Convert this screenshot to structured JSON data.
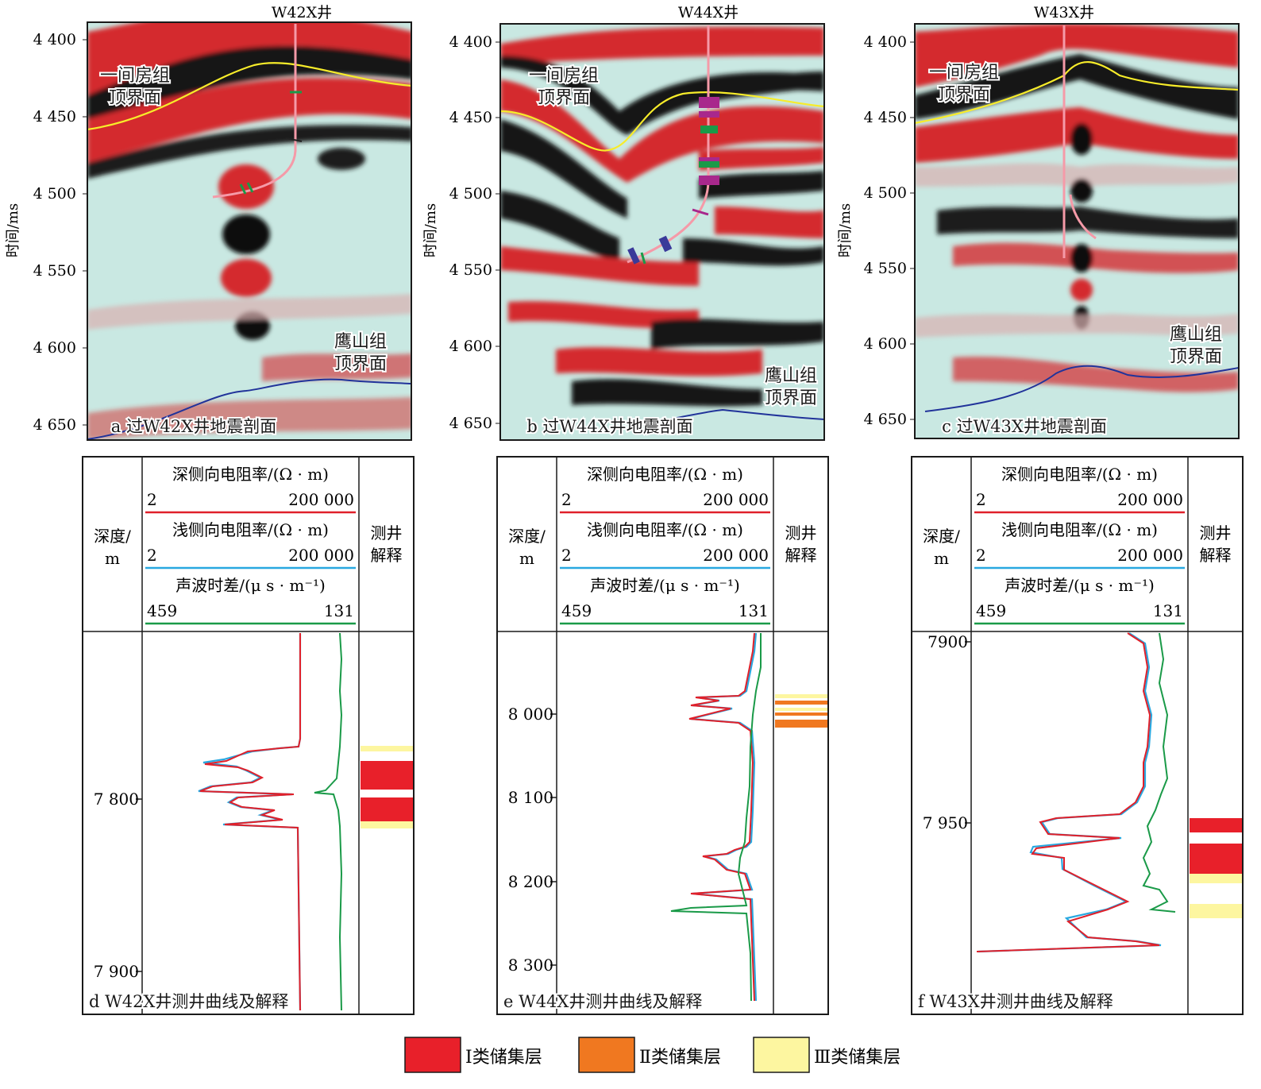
{
  "seismic_panels": [
    {
      "well_name": "W42X井",
      "caption": "a 过W42X井地震剖面",
      "yaxis_title": "时间/ms",
      "yticks": [
        "4 400",
        "4 450",
        "4 500",
        "4 550",
        "4 600",
        "4 650"
      ],
      "top_horizon_label": [
        "一间房组",
        "顶界面"
      ],
      "bottom_horizon_label": [
        "鹰山组",
        "顶界面"
      ]
    },
    {
      "well_name": "W44X井",
      "caption": "b 过W44X井地震剖面",
      "yaxis_title": "时间/ms",
      "yticks": [
        "4 400",
        "4 450",
        "4 500",
        "4 550",
        "4 600",
        "4 650"
      ],
      "top_horizon_label": [
        "一间房组",
        "顶界面"
      ],
      "bottom_horizon_label": [
        "鹰山组",
        "顶界面"
      ]
    },
    {
      "well_name": "W43X井",
      "caption": "c 过W43X井地震剖面",
      "yaxis_title": "时间/ms",
      "yticks": [
        "4 400",
        "4 450",
        "4 500",
        "4 550",
        "4 600",
        "4 650"
      ],
      "top_horizon_label": [
        "一间房组",
        "顶界面"
      ],
      "bottom_horizon_label": [
        "鹰山组",
        "顶界面"
      ]
    }
  ],
  "log_header": {
    "depth_label": [
      "深度/",
      "m"
    ],
    "deep_res": {
      "label": "深侧向电阻率/(Ω · m)",
      "min": "2",
      "max": "200 000",
      "color": "#e0202a"
    },
    "shallow_res": {
      "label": "浅侧向电阻率/(Ω · m)",
      "min": "2",
      "max": "200 000",
      "color": "#29a8e0"
    },
    "sonic": {
      "label": "声波时差/(μ s · m⁻¹)",
      "min": "459",
      "max": "131",
      "color": "#1a9a48"
    },
    "interp_label": [
      "测井",
      "解释"
    ]
  },
  "log_panels": [
    {
      "caption": "d W42X井测井曲线及解释",
      "depth_ticks": [
        "7 800",
        "7 900"
      ]
    },
    {
      "caption": "e W44X井测井曲线及解释",
      "depth_ticks": [
        "8 000",
        "8 100",
        "8 200",
        "8 300"
      ]
    },
    {
      "caption": "f W43X井测井曲线及解释",
      "depth_ticks": [
        "7900",
        "7 950"
      ]
    }
  ],
  "legend": [
    {
      "label": "Ⅰ类储集层",
      "color": "#e8202a"
    },
    {
      "label": "Ⅱ类储集层",
      "color": "#f07820"
    },
    {
      "label": "Ⅲ类储集层",
      "color": "#fdf6a0"
    }
  ]
}
